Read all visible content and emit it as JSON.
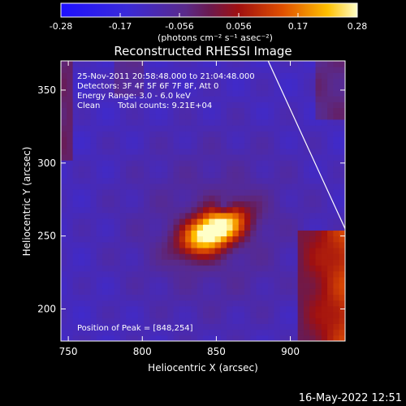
{
  "chart_data": {
    "type": "heatmap",
    "title": "Reconstructed RHESSI Image",
    "xlabel": "Heliocentric X (arcsec)",
    "ylabel": "Heliocentric Y (arcsec)",
    "xlim": [
      745,
      937
    ],
    "ylim": [
      178,
      370
    ],
    "x_ticks": [
      "750",
      "800",
      "850",
      "900"
    ],
    "y_ticks": [
      "200",
      "250",
      "300",
      "350"
    ],
    "colorbar": {
      "range": [
        -0.28,
        0.28
      ],
      "ticks": [
        "-0.28",
        "-0.17",
        "-0.056",
        "0.056",
        "0.17",
        "0.28"
      ],
      "units": "(photons cm⁻² s⁻¹ asec⁻²)"
    },
    "annotations": [
      "25-Nov-2011 20:58:48.000 to 21:04:48.000",
      "Detectors: 3F 4F 5F 6F 7F 8F, Att 0",
      "Energy Range: 3.0 - 6.0 keV",
      "Clean",
      "Total counts: 9.21E+04"
    ],
    "peak_label": "Position of Peak = [848,254]",
    "peak": [
      848,
      254
    ],
    "peak_value": 0.28,
    "limb_line": [
      [
        885,
        370
      ],
      [
        937,
        255
      ]
    ],
    "timestamp": "16-May-2022 12:51",
    "colors": {
      "background": "#000000",
      "text": "#ffffff"
    }
  }
}
